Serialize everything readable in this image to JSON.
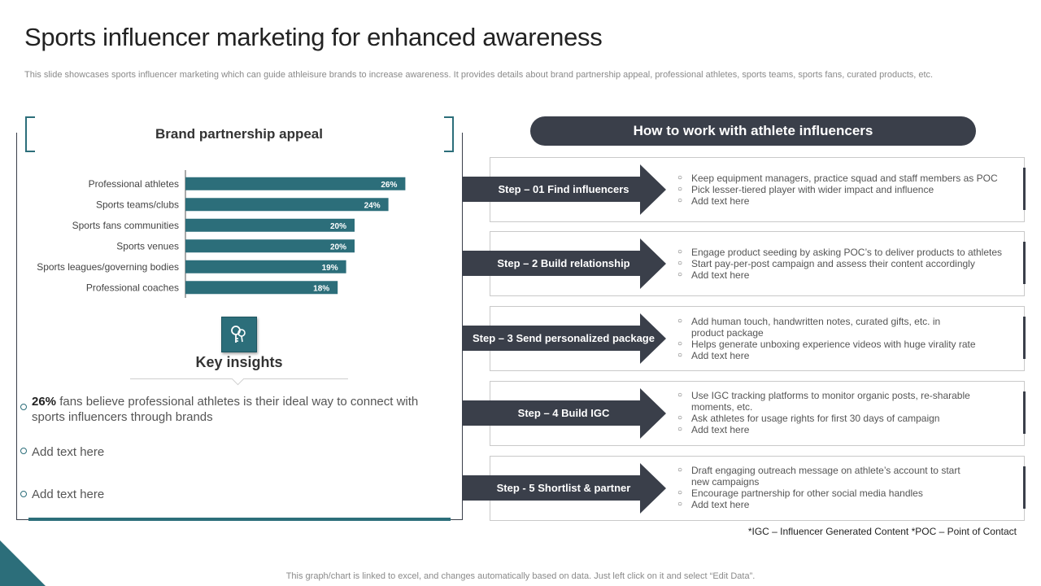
{
  "title": "Sports influencer marketing for enhanced awareness",
  "subtitle": "This slide showcases sports influencer marketing which can guide athleisure brands to increase awareness. It provides details about brand partnership appeal, professional athletes, sports teams, sports fans, curated products, etc.",
  "colors": {
    "accent": "#2c6e7a",
    "dark": "#3a3f4a"
  },
  "chart_data": {
    "type": "bar",
    "orientation": "horizontal",
    "title": "Brand partnership appeal",
    "categories": [
      "Professional athletes",
      "Sports teams/clubs",
      "Sports fans communities",
      "Sports venues",
      "Sports leagues/governing bodies",
      "Professional coaches"
    ],
    "values": [
      26,
      24,
      20,
      20,
      19,
      18
    ],
    "value_labels": [
      "26%",
      "24%",
      "20%",
      "20%",
      "19%",
      "18%"
    ],
    "xlabel": "",
    "ylabel": "",
    "grid": false,
    "bar_color": "#2c6e7a"
  },
  "insights": {
    "icon": "key-icon",
    "title": "Key insights",
    "item1_bold": "26%",
    "item1_text": " fans believe professional athletes is their ideal way to connect with sports influencers through brands",
    "item2": "Add text here",
    "item3": "Add text here"
  },
  "steps_header": "How to work with athlete influencers",
  "steps": [
    {
      "label": "Step – 01 Find influencers",
      "bullets": [
        "Keep equipment managers, practice squad and staff members as POC",
        "Pick lesser-tiered player with wider impact and influence",
        "Add text here"
      ]
    },
    {
      "label": "Step – 2 Build relationship",
      "bullets": [
        "Engage product seeding by asking POC’s to deliver products to athletes",
        "Start pay-per-post campaign and assess their content accordingly",
        "Add text here"
      ]
    },
    {
      "label": "Step – 3 Send personalized package",
      "bullets": [
        "Add human touch, handwritten notes, curated gifts, etc. in product package",
        "Helps generate unboxing experience videos with huge virality rate",
        "Add text here"
      ]
    },
    {
      "label": "Step – 4 Build IGC",
      "bullets": [
        "Use IGC tracking platforms to monitor organic posts, re-sharable moments, etc.",
        "Ask athletes for usage rights for first 30 days of campaign",
        "Add text here"
      ]
    },
    {
      "label": "Step - 5 Shortlist & partner",
      "bullets": [
        "Draft engaging outreach message on athlete’s account to start new campaigns",
        "Encourage partnership for other social media handles",
        "Add text here"
      ]
    }
  ],
  "footnote": "*IGC – Influencer  Generated  Content  *POC – Point of Contact",
  "bottom_note": "This graph/chart is linked to excel,  and changes automatically based on data. Just left click on it and select “Edit Data”."
}
